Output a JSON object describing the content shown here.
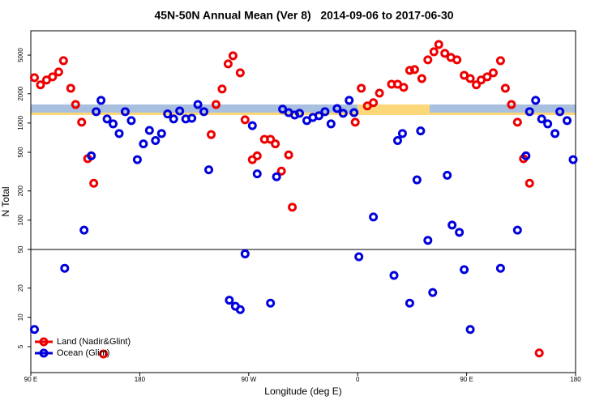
{
  "chart_data": {
    "type": "scatter",
    "title": "45N-50N Annual Mean (Ver 8)   2014-09-06 to 2017-06-30",
    "x_label": "Longitude (deg E)",
    "y_label": "N Total",
    "xlim": [
      -270,
      180
    ],
    "ylim": [
      2.7,
      8900
    ],
    "y_log": true,
    "hline": 50,
    "legend": "bottom-left",
    "xticks": [
      {
        "value": -270,
        "label": "90 E"
      },
      {
        "value": -180,
        "label": "180"
      },
      {
        "value": -90,
        "label": "90 W"
      },
      0,
      {
        "value": 90,
        "label": "90 E"
      },
      180
    ],
    "yticks": [
      5,
      10,
      20,
      50,
      100,
      200,
      500,
      1000,
      2000,
      5000
    ],
    "series": [
      {
        "name": "Land (Nadir&Glint)",
        "color": "#ee0000",
        "x": [
          -267,
          -262,
          -257,
          -252,
          -247,
          -243,
          -237,
          -233,
          -228,
          -223,
          -218,
          -210,
          -121,
          -117,
          -112,
          -107,
          -103,
          -97,
          -93,
          -87,
          -83,
          -77,
          -72,
          -68,
          -63,
          -57,
          -54,
          -2,
          3,
          8,
          13,
          18,
          28,
          33,
          38,
          43,
          47,
          53,
          58,
          63,
          67,
          72,
          77,
          82,
          88,
          93,
          98,
          102,
          107,
          112,
          118,
          122,
          127,
          132,
          137,
          142,
          150
        ],
        "values": [
          2930,
          2470,
          2770,
          2990,
          3350,
          4380,
          2280,
          1550,
          1020,
          430,
          240,
          4.2,
          760,
          1550,
          2240,
          4060,
          4920,
          3290,
          1080,
          420,
          460,
          680,
          680,
          610,
          320,
          470,
          136,
          1020,
          2280,
          1500,
          1620,
          2030,
          2510,
          2510,
          2330,
          3480,
          3550,
          2870,
          4470,
          5410,
          6430,
          5210,
          4730,
          4470,
          3100,
          2870,
          2470,
          2770,
          2990,
          3290,
          4380,
          2280,
          1550,
          1020,
          430,
          240,
          4.3
        ]
      },
      {
        "name": "Ocean (Glint)",
        "color": "#0000dd",
        "x": [
          -267,
          -242,
          -226,
          -220,
          -216,
          -212,
          -207,
          -202,
          -197,
          -192,
          -187,
          -182,
          -177,
          -172,
          -167,
          -162,
          -157,
          -152,
          -147,
          -142,
          -137,
          -132,
          -127,
          -123,
          -106,
          -101,
          -97,
          -93,
          -87,
          -83,
          -72,
          -67,
          -62,
          -57,
          -52,
          -48,
          -42,
          -37,
          -32,
          -27,
          -22,
          -17,
          -12,
          -7,
          -3,
          1,
          13,
          30,
          33,
          37,
          43,
          49,
          52,
          58,
          62,
          74,
          78,
          84,
          88,
          93,
          118,
          132,
          139,
          142,
          147,
          152,
          157,
          163,
          167,
          173,
          178
        ],
        "values": [
          7.5,
          32,
          79,
          460,
          1310,
          1710,
          1100,
          980,
          780,
          1310,
          1060,
          420,
          610,
          840,
          660,
          780,
          1240,
          1100,
          1330,
          1100,
          1120,
          1550,
          1310,
          330,
          15,
          13,
          12,
          45,
          940,
          300,
          14,
          280,
          1390,
          1280,
          1210,
          1260,
          1060,
          1140,
          1190,
          1310,
          980,
          1410,
          1260,
          1710,
          1280,
          42,
          108,
          27,
          660,
          780,
          14,
          260,
          830,
          62,
          18,
          290,
          89,
          75,
          31,
          7.5,
          32,
          79,
          460,
          1310,
          1710,
          1100,
          980,
          780,
          1310,
          1060,
          420
        ]
      }
    ]
  }
}
